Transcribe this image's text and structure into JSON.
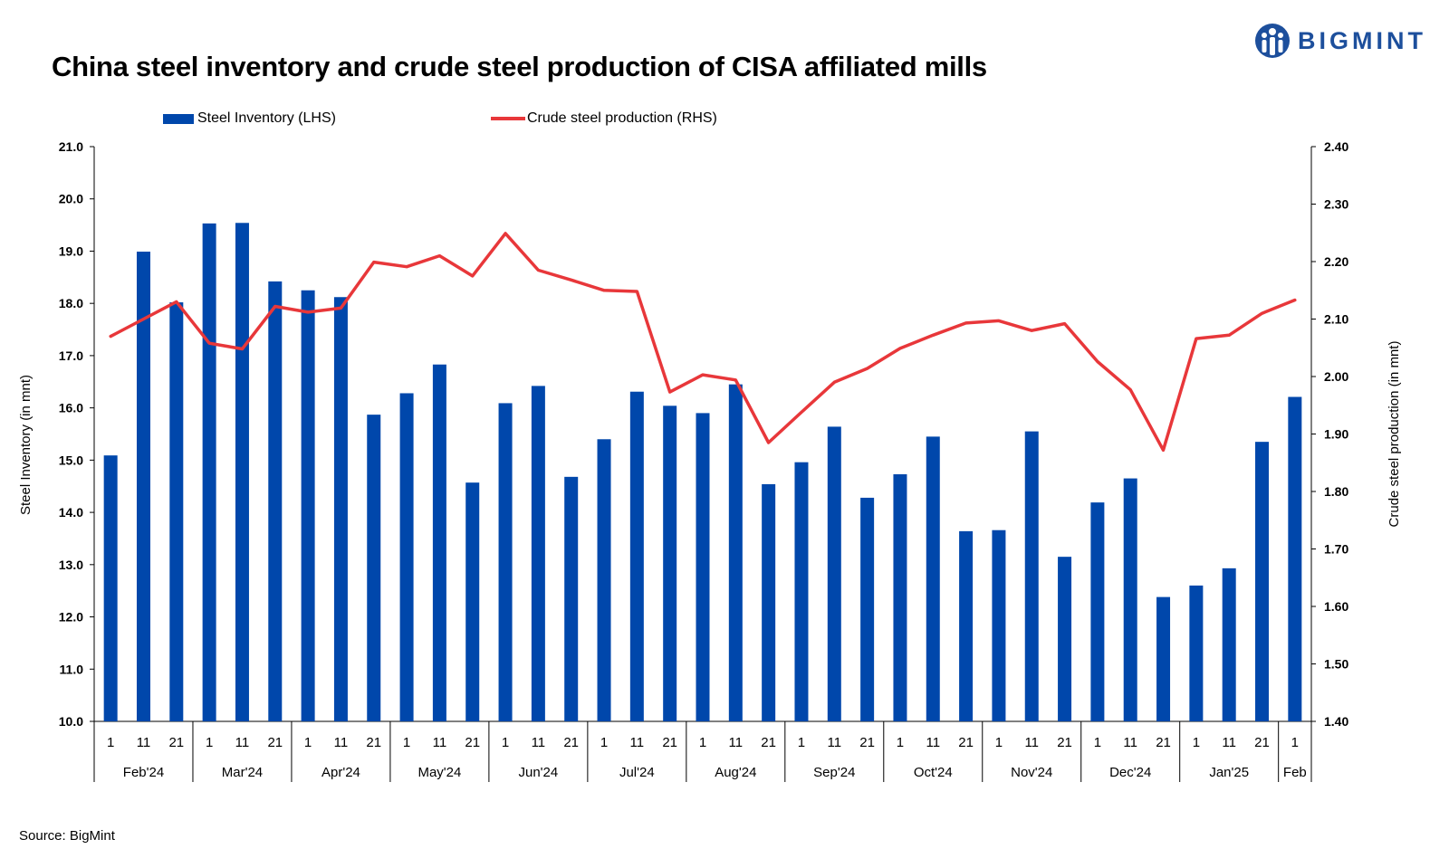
{
  "header": {
    "title": "China steel inventory and crude steel production of CISA affiliated mills",
    "brand": "BIGMINT"
  },
  "source": "Source: BigMint",
  "colors": {
    "bar": "#0047ab",
    "line": "#e8373a",
    "brand": "#1d4f9c"
  },
  "chart_data": {
    "type": "bar+line",
    "title": "China steel inventory and crude steel production of CISA affiliated mills",
    "legend": [
      {
        "name": "Steel Inventory (LHS)",
        "kind": "bar"
      },
      {
        "name": "Crude steel production (RHS)",
        "kind": "line"
      }
    ],
    "y_left": {
      "label": "Steel Inventory (in mnt)",
      "range": [
        10,
        21
      ],
      "ticks": [
        "10.0",
        "11.0",
        "12.0",
        "13.0",
        "14.0",
        "15.0",
        "16.0",
        "17.0",
        "18.0",
        "19.0",
        "20.0",
        "21.0"
      ]
    },
    "y_right": {
      "label": "Crude steel production (in mnt)",
      "range": [
        1.4,
        2.4
      ],
      "ticks": [
        "1.40",
        "1.50",
        "1.60",
        "1.70",
        "1.80",
        "1.90",
        "2.00",
        "2.10",
        "2.20",
        "2.30",
        "2.40"
      ]
    },
    "categories": [
      "1",
      "11",
      "21",
      "1",
      "11",
      "21",
      "1",
      "11",
      "21",
      "1",
      "11",
      "21",
      "1",
      "11",
      "21",
      "1",
      "11",
      "21",
      "1",
      "11",
      "21",
      "1",
      "11",
      "21",
      "1",
      "11",
      "21",
      "1",
      "11",
      "21",
      "1",
      "11",
      "21",
      "1",
      "11",
      "21",
      "1"
    ],
    "groups": [
      {
        "label": "Feb'24",
        "count": 3
      },
      {
        "label": "Mar'24",
        "count": 3
      },
      {
        "label": "Apr'24",
        "count": 3
      },
      {
        "label": "May'24",
        "count": 3
      },
      {
        "label": "Jun'24",
        "count": 3
      },
      {
        "label": "Jul'24",
        "count": 3
      },
      {
        "label": "Aug'24",
        "count": 3
      },
      {
        "label": "Sep'24",
        "count": 3
      },
      {
        "label": "Oct'24",
        "count": 3
      },
      {
        "label": "Nov'24",
        "count": 3
      },
      {
        "label": "Dec'24",
        "count": 3
      },
      {
        "label": "Jan'25",
        "count": 3
      },
      {
        "label": "Feb",
        "count": 1
      }
    ],
    "series": [
      {
        "name": "Steel Inventory (LHS)",
        "axis": "left",
        "kind": "bar",
        "values": [
          15.09,
          18.99,
          18.02,
          19.53,
          19.54,
          18.42,
          18.25,
          18.12,
          15.87,
          16.28,
          16.83,
          14.57,
          16.09,
          16.42,
          14.68,
          15.4,
          16.31,
          16.04,
          15.9,
          16.45,
          14.54,
          14.96,
          15.64,
          14.28,
          14.73,
          15.45,
          13.64,
          13.66,
          15.55,
          13.15,
          14.19,
          14.65,
          12.38,
          12.6,
          12.93,
          15.35,
          16.21
        ]
      },
      {
        "name": "Crude steel production (RHS)",
        "axis": "right",
        "kind": "line",
        "values": [
          2.07,
          2.1,
          2.13,
          2.058,
          2.048,
          2.122,
          2.112,
          2.119,
          2.199,
          2.191,
          2.21,
          2.175,
          2.249,
          2.185,
          2.168,
          2.15,
          2.148,
          1.973,
          2.003,
          1.994,
          1.885,
          1.938,
          1.99,
          2.014,
          2.049,
          2.072,
          2.093,
          2.097,
          2.08,
          2.092,
          2.026,
          1.977,
          1.872,
          2.066,
          2.072,
          2.11,
          2.133
        ]
      }
    ]
  }
}
